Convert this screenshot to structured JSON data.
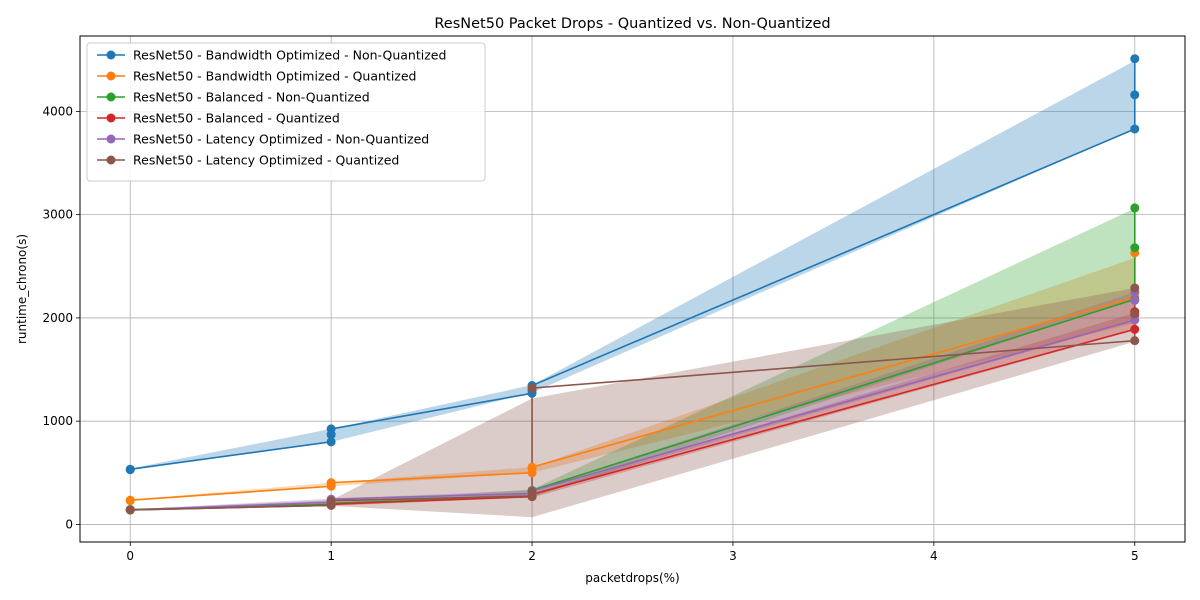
{
  "chart_data": {
    "type": "line",
    "title": "ResNet50 Packet Drops - Quantized vs. Non-Quantized",
    "xlabel": "packetdrops(%)",
    "ylabel": "runtime_chrono(s)",
    "xlim": [
      -0.25,
      5.25
    ],
    "ylim": [
      -170,
      4730
    ],
    "xticks": [
      0,
      1,
      2,
      3,
      4,
      5
    ],
    "yticks": [
      0,
      1000,
      2000,
      3000,
      4000
    ],
    "grid": true,
    "legend_position": "top-left",
    "series": [
      {
        "name": "ResNet50 - Bandwidth Optimized - Non-Quantized",
        "color": "#1f77b4",
        "points": [
          [
            0,
            530
          ],
          [
            0,
            535
          ],
          [
            1,
            800
          ],
          [
            1,
            870
          ],
          [
            1,
            925
          ],
          [
            2,
            1270
          ],
          [
            2,
            1300
          ],
          [
            2,
            1345
          ],
          [
            5,
            3830
          ],
          [
            5,
            4160
          ],
          [
            5,
            4510
          ]
        ],
        "band": [
          [
            0,
            525,
            540
          ],
          [
            1,
            800,
            925
          ],
          [
            2,
            1275,
            1350
          ],
          [
            5,
            3830,
            4490
          ]
        ]
      },
      {
        "name": "ResNet50 - Bandwidth Optimized - Quantized",
        "color": "#ff7f0e",
        "points": [
          [
            0,
            230
          ],
          [
            0,
            235
          ],
          [
            1,
            370
          ],
          [
            1,
            395
          ],
          [
            1,
            405
          ],
          [
            2,
            500
          ],
          [
            2,
            545
          ],
          [
            2,
            555
          ],
          [
            5,
            2200
          ],
          [
            5,
            2240
          ],
          [
            5,
            2630
          ]
        ],
        "band": [
          [
            0,
            228,
            238
          ],
          [
            1,
            370,
            405
          ],
          [
            2,
            500,
            555
          ],
          [
            5,
            1950,
            2580
          ]
        ]
      },
      {
        "name": "ResNet50 - Balanced - Non-Quantized",
        "color": "#2ca02c",
        "points": [
          [
            0,
            140
          ],
          [
            0,
            145
          ],
          [
            1,
            195
          ],
          [
            1,
            205
          ],
          [
            2,
            270
          ],
          [
            2,
            300
          ],
          [
            2,
            330
          ],
          [
            5,
            2180
          ],
          [
            5,
            2680
          ],
          [
            5,
            3065
          ]
        ],
        "band": [
          [
            0,
            138,
            148
          ],
          [
            1,
            190,
            210
          ],
          [
            2,
            265,
            340
          ],
          [
            5,
            2180,
            3060
          ]
        ]
      },
      {
        "name": "ResNet50 - Balanced - Quantized",
        "color": "#d62728",
        "points": [
          [
            0,
            140
          ],
          [
            1,
            185
          ],
          [
            1,
            195
          ],
          [
            2,
            270
          ],
          [
            2,
            290
          ],
          [
            5,
            1890
          ],
          [
            5,
            2030
          ],
          [
            5,
            2060
          ]
        ],
        "band": [
          [
            0,
            136,
            146
          ],
          [
            1,
            180,
            200
          ],
          [
            2,
            260,
            300
          ],
          [
            5,
            1880,
            2050
          ]
        ]
      },
      {
        "name": "ResNet50 - Latency Optimized - Non-Quantized",
        "color": "#9467bd",
        "points": [
          [
            0,
            140
          ],
          [
            1,
            215
          ],
          [
            1,
            245
          ],
          [
            2,
            300
          ],
          [
            2,
            325
          ],
          [
            5,
            1980
          ],
          [
            5,
            2170
          ],
          [
            5,
            2250
          ]
        ],
        "band": [
          [
            0,
            136,
            146
          ],
          [
            1,
            205,
            250
          ],
          [
            2,
            290,
            330
          ],
          [
            5,
            1970,
            2250
          ]
        ]
      },
      {
        "name": "ResNet50 - Latency Optimized - Quantized",
        "color": "#8c564b",
        "points": [
          [
            0,
            140
          ],
          [
            1,
            185
          ],
          [
            1,
            230
          ],
          [
            2,
            275
          ],
          [
            2,
            320
          ],
          [
            2,
            1320
          ],
          [
            5,
            1780
          ],
          [
            5,
            2040
          ],
          [
            5,
            2290
          ]
        ],
        "band": [
          [
            0,
            136,
            146
          ],
          [
            1,
            180,
            235
          ],
          [
            2,
            70,
            1220
          ],
          [
            5,
            1770,
            2290
          ]
        ]
      }
    ]
  }
}
